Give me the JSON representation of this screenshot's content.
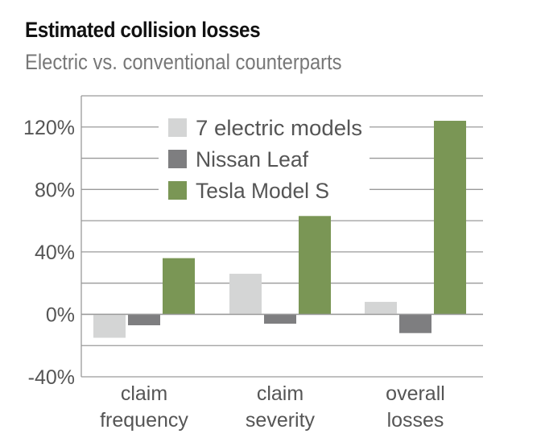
{
  "chart_data": {
    "type": "bar",
    "title": "Estimated collision losses",
    "subtitle": "Electric vs. conventional counterparts",
    "categories": [
      [
        "claim",
        "frequency"
      ],
      [
        "claim",
        "severity"
      ],
      [
        "overall",
        "losses"
      ]
    ],
    "series": [
      {
        "name": "7 electric models",
        "color": "#d4d5d5",
        "values": [
          -15,
          26,
          8
        ]
      },
      {
        "name": "Nissan Leaf",
        "color": "#7e7e80",
        "values": [
          -7,
          -6,
          -12
        ]
      },
      {
        "name": "Tesla Model S",
        "color": "#7a9655",
        "values": [
          36,
          63,
          124
        ]
      }
    ],
    "yticks": [
      -40,
      0,
      40,
      80,
      120
    ],
    "ytick_labels": [
      "-40%",
      "0%",
      "40%",
      "80%",
      "120%"
    ],
    "ylim": [
      -40,
      140
    ],
    "gridlines": [
      -40,
      -20,
      0,
      20,
      40,
      60,
      80,
      100,
      120,
      140
    ],
    "legend_position": "top-left"
  }
}
